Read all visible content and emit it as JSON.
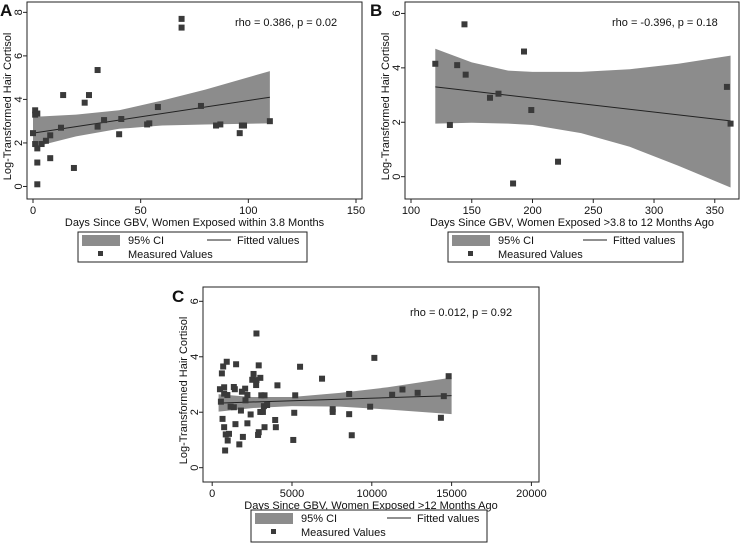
{
  "colors": {
    "ci": "#8c8c8c",
    "point": "#3a3a3a",
    "line": "#222222",
    "frame": "#222222"
  },
  "chart_data": [
    {
      "type": "scatter",
      "panel": "A",
      "annotation": "rho = 0.386, p = 0.02",
      "xlabel": "Days Since GBV, Women Exposed within 3.8 Months",
      "ylabel": "Log-Transformed Hair Cortisol",
      "xlim": [
        0,
        150
      ],
      "ylim": [
        -0.3,
        8.2
      ],
      "xticks": [
        0,
        50,
        100,
        150
      ],
      "yticks": [
        0,
        2,
        4,
        6,
        8
      ],
      "legend": {
        "ci": "95% CI",
        "fit": "Fitted values",
        "points": "Measured Values"
      },
      "fit": {
        "x": [
          0,
          110
        ],
        "y": [
          2.45,
          4.1
        ]
      },
      "ci": {
        "x": [
          0,
          20,
          40,
          60,
          80,
          110
        ],
        "lower": [
          1.8,
          2.3,
          2.65,
          2.8,
          2.85,
          2.9
        ],
        "upper": [
          3.2,
          3.3,
          3.5,
          3.95,
          4.45,
          5.3
        ]
      },
      "points": [
        [
          0,
          2.45
        ],
        [
          1,
          3.5
        ],
        [
          1,
          3.3
        ],
        [
          2,
          3.35
        ],
        [
          1,
          1.95
        ],
        [
          2,
          1.75
        ],
        [
          2,
          1.1
        ],
        [
          2,
          0.1
        ],
        [
          4,
          1.95
        ],
        [
          6,
          2.1
        ],
        [
          8,
          2.35
        ],
        [
          8,
          1.3
        ],
        [
          13,
          2.7
        ],
        [
          14,
          4.2
        ],
        [
          19,
          0.85
        ],
        [
          24,
          3.85
        ],
        [
          26,
          4.2
        ],
        [
          30,
          5.35
        ],
        [
          30,
          2.75
        ],
        [
          33,
          3.05
        ],
        [
          40,
          2.4
        ],
        [
          41,
          3.1
        ],
        [
          53,
          2.85
        ],
        [
          54,
          2.9
        ],
        [
          58,
          3.65
        ],
        [
          69,
          7.7
        ],
        [
          69,
          7.3
        ],
        [
          78,
          3.7
        ],
        [
          85,
          2.8
        ],
        [
          87,
          2.85
        ],
        [
          96,
          2.45
        ],
        [
          97,
          2.8
        ],
        [
          98,
          2.8
        ],
        [
          110,
          3.0
        ]
      ]
    },
    {
      "type": "scatter",
      "panel": "B",
      "annotation": "rho = -0.396, p = 0.18",
      "xlabel": "Days Since GBV, Women Exposed >3.8 to 12 Months Ago",
      "ylabel": "Log-Transformed Hair Cortisol",
      "xlim": [
        100,
        365
      ],
      "ylim": [
        -0.6,
        6.2
      ],
      "xticks": [
        100,
        150,
        200,
        250,
        300,
        350
      ],
      "yticks": [
        0,
        2,
        4,
        6
      ],
      "legend": {
        "ci": "95% CI",
        "fit": "Fitted values",
        "points": "Measured Values"
      },
      "fit": {
        "x": [
          120,
          363
        ],
        "y": [
          3.3,
          2.05
        ]
      },
      "ci": {
        "x": [
          120,
          150,
          180,
          200,
          240,
          280,
          320,
          363
        ],
        "lower": [
          1.95,
          1.98,
          1.95,
          1.9,
          1.6,
          1.1,
          0.4,
          -0.4
        ],
        "upper": [
          4.7,
          4.2,
          3.9,
          3.85,
          3.85,
          3.95,
          4.15,
          4.45
        ]
      },
      "points": [
        [
          120,
          4.15
        ],
        [
          132,
          1.9
        ],
        [
          138,
          4.1
        ],
        [
          144,
          5.6
        ],
        [
          145,
          3.75
        ],
        [
          165,
          2.9
        ],
        [
          172,
          3.05
        ],
        [
          184,
          -0.25
        ],
        [
          193,
          4.6
        ],
        [
          199,
          2.45
        ],
        [
          221,
          0.55
        ],
        [
          360,
          3.3
        ],
        [
          363,
          1.95
        ]
      ]
    },
    {
      "type": "scatter",
      "panel": "C",
      "annotation": "rho = 0.012, p = 0.92",
      "xlabel": "Days Since GBV, Women Exposed >12 Months Ago",
      "ylabel": "Log-Transformed Hair Cortisol",
      "xlim": [
        -200,
        20100
      ],
      "ylim": [
        -0.3,
        6.3
      ],
      "xticks": [
        0,
        5000,
        10000,
        15000,
        20000
      ],
      "yticks": [
        0,
        2,
        4,
        6
      ],
      "legend": {
        "ci": "95% CI",
        "fit": "Fitted values",
        "points": "Measured Values"
      },
      "fit": {
        "x": [
          400,
          15000
        ],
        "y": [
          2.33,
          2.6
        ]
      },
      "ci": {
        "x": [
          400,
          2500,
          5000,
          8000,
          11000,
          15000
        ],
        "lower": [
          2.02,
          2.15,
          2.22,
          2.2,
          2.1,
          1.93
        ],
        "upper": [
          2.65,
          2.55,
          2.55,
          2.7,
          2.9,
          3.25
        ]
      },
      "points": [
        [
          486,
          2.83
        ],
        [
          546,
          2.38
        ],
        [
          607,
          3.4
        ],
        [
          688,
          3.65
        ],
        [
          648,
          1.76
        ],
        [
          749,
          2.9
        ],
        [
          749,
          2.67
        ],
        [
          749,
          1.46
        ],
        [
          810,
          0.62
        ],
        [
          850,
          1.2
        ],
        [
          911,
          3.82
        ],
        [
          951,
          2.62
        ],
        [
          972,
          0.98
        ],
        [
          1052,
          1.22
        ],
        [
          1154,
          2.2
        ],
        [
          1356,
          2.18
        ],
        [
          1356,
          2.91
        ],
        [
          1417,
          2.83
        ],
        [
          1457,
          1.57
        ],
        [
          1498,
          3.73
        ],
        [
          1700,
          0.84
        ],
        [
          1801,
          2.06
        ],
        [
          1862,
          2.74
        ],
        [
          1923,
          1.11
        ],
        [
          2065,
          2.85
        ],
        [
          2085,
          2.43
        ],
        [
          2206,
          2.62
        ],
        [
          2206,
          1.6
        ],
        [
          2409,
          1.92
        ],
        [
          2510,
          3.17
        ],
        [
          2591,
          3.38
        ],
        [
          2753,
          2.98
        ],
        [
          2773,
          4.84
        ],
        [
          2773,
          3.16
        ],
        [
          2874,
          1.18
        ],
        [
          2915,
          3.69
        ],
        [
          2915,
          1.28
        ],
        [
          3016,
          2.01
        ],
        [
          3016,
          3.24
        ],
        [
          3077,
          2.61
        ],
        [
          3178,
          2.01
        ],
        [
          3239,
          2.22
        ],
        [
          3279,
          2.61
        ],
        [
          3279,
          1.46
        ],
        [
          3441,
          2.26
        ],
        [
          3947,
          1.72
        ],
        [
          3988,
          1.46
        ],
        [
          4088,
          2.97
        ],
        [
          5080,
          1.0
        ],
        [
          5141,
          1.98
        ],
        [
          5202,
          2.61
        ],
        [
          5505,
          3.64
        ],
        [
          6882,
          3.21
        ],
        [
          7550,
          2.11
        ],
        [
          7550,
          2.01
        ],
        [
          8582,
          2.66
        ],
        [
          8582,
          1.93
        ],
        [
          8744,
          1.17
        ],
        [
          9897,
          2.2
        ],
        [
          10160,
          3.96
        ],
        [
          11274,
          2.63
        ],
        [
          11921,
          2.82
        ],
        [
          12873,
          2.7
        ],
        [
          14330,
          1.8
        ],
        [
          14512,
          2.58
        ],
        [
          14815,
          3.3
        ]
      ]
    }
  ]
}
